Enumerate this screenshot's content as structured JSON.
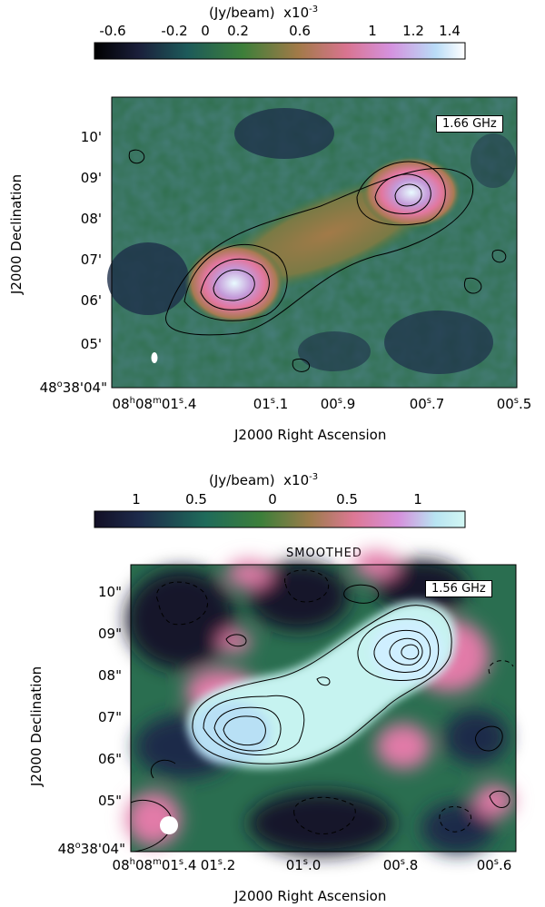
{
  "top": {
    "colorbar": {
      "unit": "(Jy/beam)",
      "scale": "x10",
      "exponent": "-3",
      "ticks": [
        "-0.6",
        "-0.2",
        "0",
        "0.2",
        "0.6",
        "1",
        "1.2",
        "1.4"
      ]
    },
    "frequency_label": "1.66 GHz",
    "y_ticks": [
      {
        "main": "10'",
        "prefix": "",
        "sup1": "",
        "mid": ""
      },
      {
        "main": "09'",
        "prefix": "",
        "sup1": "",
        "mid": ""
      },
      {
        "main": "08'",
        "prefix": "",
        "sup1": "",
        "mid": ""
      },
      {
        "main": "07'",
        "prefix": "",
        "sup1": "",
        "mid": ""
      },
      {
        "main": "06'",
        "prefix": "",
        "sup1": "",
        "mid": ""
      },
      {
        "main": "05'",
        "prefix": "",
        "sup1": "",
        "mid": ""
      }
    ],
    "y_origin": {
      "deg": "48",
      "rest": "38'04\""
    },
    "x_ticks": [
      {
        "h": "08",
        "m": "08",
        "s": "01",
        "frac": ".4"
      },
      {
        "h": "",
        "m": "",
        "s": "01",
        "frac": ".1"
      },
      {
        "h": "",
        "m": "",
        "s": "00",
        "frac": ".9"
      },
      {
        "h": "",
        "m": "",
        "s": "00",
        "frac": ".7"
      },
      {
        "h": "",
        "m": "",
        "s": "00",
        "frac": ".5"
      }
    ],
    "x_title": "J2000 Right Ascension",
    "y_title": "J2000 Declination"
  },
  "bottom": {
    "colorbar": {
      "unit": "(Jy/beam)",
      "scale": "x10",
      "exponent": "-3",
      "ticks": [
        "1",
        "0.5",
        "0",
        "0.5",
        "1"
      ]
    },
    "panel_title": "SMOOTHED",
    "frequency_label": "1.56 GHz",
    "y_ticks": [
      "10\"",
      "09\"",
      "08\"",
      "07\"",
      "06\"",
      "05\""
    ],
    "y_origin": {
      "deg": "48",
      "rest": "38'04\""
    },
    "x_ticks": [
      {
        "h": "08",
        "m": "08",
        "s": "01",
        "frac": ".4"
      },
      {
        "h": "",
        "m": "",
        "s": "01",
        "frac": ".2"
      },
      {
        "h": "",
        "m": "",
        "s": "01",
        "frac": ".0"
      },
      {
        "h": "",
        "m": "",
        "s": "00",
        "frac": ".8"
      },
      {
        "h": "",
        "m": "",
        "s": "00",
        "frac": ".6"
      }
    ],
    "x_title": "J2000 Right Ascension",
    "y_title": "J2000 Declination"
  },
  "colors": {
    "cubehelix_dark": "#1a1530",
    "green": "#2f7a4a",
    "tan": "#a37a4a",
    "pink": "#e27aa8",
    "light_cyan": "#c8f4f2"
  }
}
